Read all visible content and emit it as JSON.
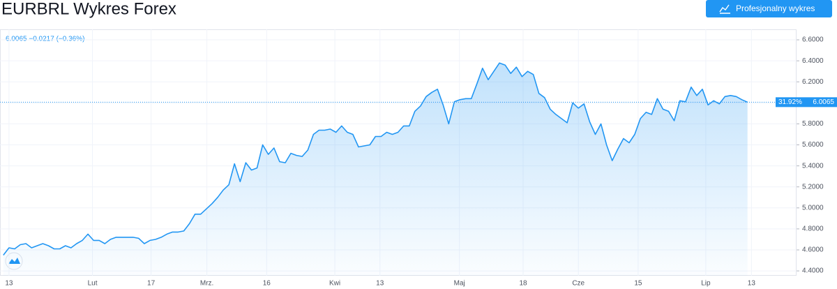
{
  "header": {
    "title": "EURBRL Wykres Forex",
    "button": "Profesjonalny wykres"
  },
  "chart_data": {
    "type": "area",
    "legend_text": "6.0065 −0.0217 (−0.36%)",
    "last_change_label": "31.92%",
    "color": "#2196f3",
    "values": [
      4.55,
      4.62,
      4.61,
      4.65,
      4.66,
      4.62,
      4.64,
      4.66,
      4.64,
      4.61,
      4.61,
      4.64,
      4.62,
      4.66,
      4.69,
      4.75,
      4.69,
      4.69,
      4.66,
      4.7,
      4.72,
      4.72,
      4.72,
      4.72,
      4.71,
      4.66,
      4.69,
      4.7,
      4.72,
      4.75,
      4.77,
      4.77,
      4.78,
      4.85,
      4.94,
      4.94,
      4.99,
      5.04,
      5.1,
      5.17,
      5.22,
      5.42,
      5.25,
      5.43,
      5.36,
      5.38,
      5.6,
      5.51,
      5.57,
      5.44,
      5.43,
      5.52,
      5.5,
      5.49,
      5.55,
      5.7,
      5.74,
      5.74,
      5.75,
      5.72,
      5.78,
      5.72,
      5.7,
      5.58,
      5.59,
      5.6,
      5.68,
      5.68,
      5.72,
      5.7,
      5.72,
      5.78,
      5.78,
      5.92,
      5.97,
      6.06,
      6.1,
      6.13,
      5.98,
      5.8,
      6.01,
      6.03,
      6.04,
      6.04,
      6.18,
      6.33,
      6.22,
      6.3,
      6.38,
      6.36,
      6.28,
      6.34,
      6.25,
      6.3,
      6.27,
      6.09,
      6.05,
      5.94,
      5.89,
      5.85,
      5.81,
      6.0,
      5.95,
      5.99,
      5.82,
      5.7,
      5.8,
      5.6,
      5.45,
      5.56,
      5.66,
      5.62,
      5.7,
      5.85,
      5.91,
      5.89,
      6.04,
      5.94,
      5.92,
      5.83,
      6.02,
      6.01,
      6.15,
      6.07,
      6.13,
      5.98,
      6.02,
      5.99,
      6.06,
      6.07,
      6.06,
      6.03,
      6.0065
    ],
    "xlim": [
      -0.6,
      140.7
    ],
    "xticks": [
      {
        "value": 1,
        "label": "13"
      },
      {
        "value": 15.8,
        "label": "Lut"
      },
      {
        "value": 26.2,
        "label": "17"
      },
      {
        "value": 36.1,
        "label": "Mrz."
      },
      {
        "value": 46.7,
        "label": "16"
      },
      {
        "value": 58.8,
        "label": "Kwi"
      },
      {
        "value": 66.8,
        "label": "13"
      },
      {
        "value": 80.9,
        "label": "Maj"
      },
      {
        "value": 92.2,
        "label": "18"
      },
      {
        "value": 102,
        "label": "Cze"
      },
      {
        "value": 112.6,
        "label": "15"
      },
      {
        "value": 124.6,
        "label": "Lip"
      },
      {
        "value": 132.7,
        "label": "13"
      }
    ],
    "ylim": [
      4.354,
      6.7
    ],
    "yticks": [
      {
        "value": 4.4,
        "label": "4.4000"
      },
      {
        "value": 4.6,
        "label": "4.6000"
      },
      {
        "value": 4.8,
        "label": "4.8000"
      },
      {
        "value": 5.0,
        "label": "5.0000"
      },
      {
        "value": 5.2,
        "label": "5.2000"
      },
      {
        "value": 5.4,
        "label": "5.4000"
      },
      {
        "value": 5.6,
        "label": "5.6000"
      },
      {
        "value": 5.8,
        "label": "5.8000"
      },
      {
        "value": 6.0,
        "label": "6.0000"
      },
      {
        "value": 6.2,
        "label": "6.2000"
      },
      {
        "value": 6.4,
        "label": "6.4000"
      },
      {
        "value": 6.6,
        "label": "6.6000"
      }
    ],
    "grid": true
  }
}
